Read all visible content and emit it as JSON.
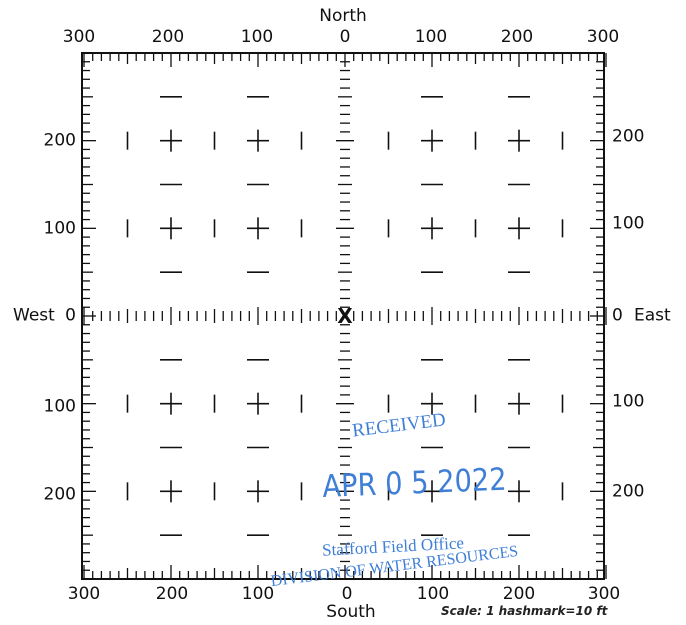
{
  "compass": {
    "north": "North",
    "south": "South",
    "west": "West",
    "east": "East"
  },
  "top_ticks": [
    "300",
    "200",
    "100",
    "0",
    "100",
    "200",
    "300"
  ],
  "bottom_ticks": [
    "300",
    "200",
    "100",
    "0",
    "100",
    "200",
    "300"
  ],
  "left_ticks": [
    "200",
    "100",
    "0",
    "100",
    "200"
  ],
  "right_ticks": [
    "200",
    "100",
    "0",
    "100",
    "200"
  ],
  "scale_note": "Scale:  1 hashmark=10 ft",
  "center_marker": "X",
  "stamp": {
    "received": "RECEIVED",
    "date": "APR 0 5 2022",
    "office": "Stafford Field Office",
    "division": "DIVISION OF WATER RESOURCES",
    "color": "#3f7fd6"
  },
  "colors": {
    "ink": "#111111",
    "paper": "#ffffff"
  }
}
